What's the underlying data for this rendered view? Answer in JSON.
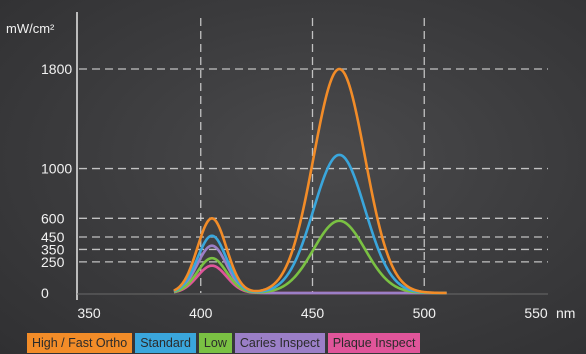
{
  "chart_data": {
    "type": "line",
    "ylabel": "mW/cm²",
    "xlabel": "nm",
    "xlim": [
      350,
      550
    ],
    "ylim": [
      0,
      2000
    ],
    "x_ticks": [
      "350",
      "400",
      "450",
      "500",
      "550"
    ],
    "y_ticks": [
      "0",
      "250",
      "350",
      "450",
      "600",
      "1000",
      "1800"
    ],
    "grid": "dashed",
    "legend_position": "bottom",
    "series": [
      {
        "name": "High / Fast Ortho",
        "color": "#f28c28",
        "peak405": 600,
        "peak462": 1800
      },
      {
        "name": "Standard",
        "color": "#3aa6dc",
        "peak405": 460,
        "peak462": 1110
      },
      {
        "name": "Low",
        "color": "#7ac143",
        "peak405": 280,
        "peak462": 580
      },
      {
        "name": "Caries Inspect",
        "color": "#9b7fc7",
        "peak405": 380,
        "peak462": 0
      },
      {
        "name": "Plaque Inspect",
        "color": "#e0559a",
        "peak405": 220,
        "peak462": 0
      }
    ]
  }
}
